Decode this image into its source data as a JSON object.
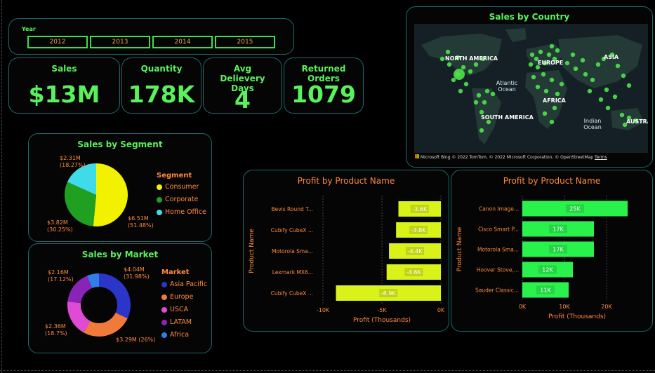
{
  "year_slicer": {
    "label": "Year",
    "years": [
      "2012",
      "2013",
      "2014",
      "2015"
    ]
  },
  "kpis": [
    {
      "title": "Sales",
      "value": "$13M"
    },
    {
      "title": "Quantity",
      "value": "178K"
    },
    {
      "title": "Avg Delievery Days",
      "value": "4"
    },
    {
      "title": "Returned Orders",
      "value": "1079"
    }
  ],
  "map": {
    "title": "Sales by Country",
    "continents": [
      "NORTH AMERICA",
      "EUROPE",
      "ASIA",
      "AFRICA",
      "SOUTH AMERICA",
      "AUSTRA"
    ],
    "oceans": [
      "Atlantic Ocean",
      "Indian Ocean"
    ],
    "attribution_brand": "Microsoft Bing",
    "attribution_text": "© 2022 TomTom, © 2022 Microsoft Corporation, © OpenStreetMap",
    "terms": "Terms",
    "land_color": "#233a36",
    "bubble_color": "#4de34d"
  },
  "colors": {
    "accent_green": "#59f25c",
    "label_orange": "#ff8a3d",
    "border": "#1e6b6b",
    "bar_negative": "#d9f21a",
    "bar_positive": "#2af24d"
  },
  "chart_data": [
    {
      "type": "pie",
      "title": "Sales by Segment",
      "legend_title": "Segment",
      "categories": [
        "Consumer",
        "Corporate",
        "Home Office"
      ],
      "values": [
        6.51,
        3.82,
        2.31
      ],
      "value_labels": [
        "$6.51M",
        "$3.82M",
        "$2.31M"
      ],
      "percent_labels": [
        "(51.48%)",
        "(30.25%)",
        "(18.27%)"
      ],
      "colors": [
        "#f2f200",
        "#20a020",
        "#3fdbe8"
      ]
    },
    {
      "type": "pie",
      "subtype": "donut",
      "title": "Sales by Market",
      "legend_title": "Market",
      "categories": [
        "Asia Pacific",
        "Europe",
        "USCA",
        "LATAM",
        "Africa"
      ],
      "values": [
        4.04,
        3.29,
        2.36,
        2.16,
        0.78
      ],
      "value_labels": [
        "$4.04M",
        "$3.29M",
        "$2.36M",
        "$2.16M",
        ""
      ],
      "percent_labels": [
        "(31.98%)",
        "(26%)",
        "(18.7%)",
        "(17.12%)",
        ""
      ],
      "colors": [
        "#2b35c9",
        "#f07a3a",
        "#e04bd6",
        "#8a24b8",
        "#2f7fe6"
      ]
    },
    {
      "type": "bar",
      "orientation": "horizontal",
      "title": "Profit by Product Name",
      "categories": [
        "Bevis Round T...",
        "Cubify CubeX ...",
        "Motorola Sma...",
        "Lexmark MX6...",
        "Cubify CubeX ..."
      ],
      "values": [
        -3.6,
        -3.8,
        -4.4,
        -4.6,
        -8.9
      ],
      "data_labels": [
        "-3.6K",
        "-3.8K",
        "-4.4K",
        "-4.6K",
        "-8.9K"
      ],
      "xlabel": "Profit (Thousands)",
      "ylabel": "Product Name",
      "xlim": [
        -10,
        0
      ],
      "ticks": [
        -10,
        -5,
        0
      ],
      "tick_labels": [
        "-10K",
        "-5K",
        "0K"
      ]
    },
    {
      "type": "bar",
      "orientation": "horizontal",
      "title": "Profit by Product Name",
      "categories": [
        "Canon Image...",
        "Cisco Smart P...",
        "Motorola Sma...",
        "Hoover Stove,...",
        "Sauder Classic..."
      ],
      "values": [
        25,
        17,
        17,
        12,
        11
      ],
      "data_labels": [
        "25K",
        "17K",
        "17K",
        "12K",
        "11K"
      ],
      "xlabel": "Profit (Thousands)",
      "ylabel": "Product Name",
      "xlim": [
        0,
        26
      ],
      "ticks": [
        0,
        10,
        20
      ],
      "tick_labels": [
        "0K",
        "10K",
        "20K"
      ]
    }
  ]
}
